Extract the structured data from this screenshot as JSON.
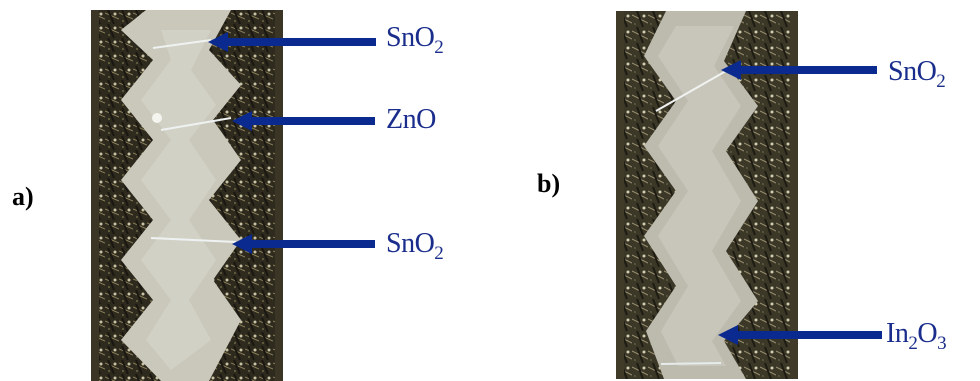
{
  "panels": [
    {
      "id": "a",
      "label": "a)",
      "annotations": [
        {
          "base": "SnO",
          "sub": "2"
        },
        {
          "base": "ZnO",
          "sub": ""
        },
        {
          "base": "SnO",
          "sub": "2"
        }
      ]
    },
    {
      "id": "b",
      "label": "b)",
      "annotations": [
        {
          "base": "SnO",
          "sub": "2"
        },
        {
          "base": "In",
          "sub": "2",
          "base2": "O",
          "sub2": "3"
        }
      ]
    }
  ],
  "colors": {
    "arrow": "#0b2a8f",
    "label_text": "#1a2d8c",
    "background": "#ffffff"
  }
}
